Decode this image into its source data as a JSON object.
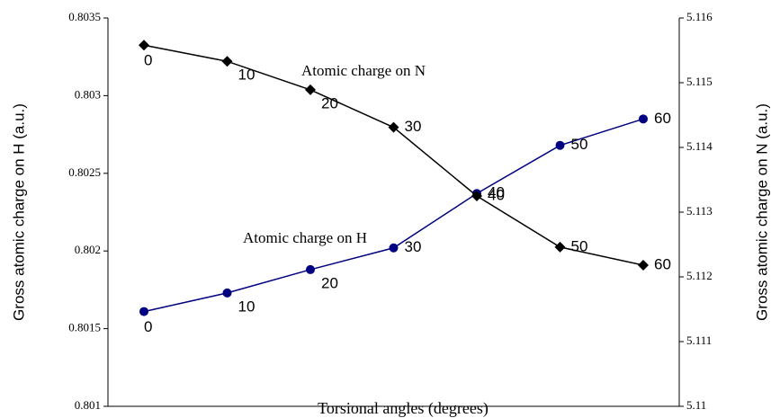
{
  "chart_data": {
    "type": "line",
    "xlabel": "Torsional angles (degrees)",
    "ylabel": "Gross atomic charge on H (a.u.)",
    "y2label": "Gross atomic charge on N (a.u.)",
    "categories": [
      "0",
      "10",
      "20",
      "30",
      "40",
      "50",
      "60"
    ],
    "series": [
      {
        "name": "Atomic charge on H",
        "color": "#000080",
        "marker": "circle",
        "values": [
          0.80161,
          0.80173,
          0.80188,
          0.80202,
          0.80237,
          0.80268,
          0.80285
        ]
      },
      {
        "name": "Atomic charge on N",
        "color": "#000000",
        "marker": "diamond",
        "axis": "y2",
        "values": [
          5.11558,
          5.11533,
          5.11489,
          5.11431,
          5.11325,
          5.11246,
          5.11218
        ]
      }
    ],
    "ylim": [
      0.801,
      0.8035
    ],
    "yticks": [
      0.801,
      0.8015,
      0.802,
      0.8025,
      0.803,
      0.8035
    ],
    "y2lim": [
      5.11,
      5.116
    ],
    "y2ticks": [
      {
        "value": 5.11,
        "label": "5.11"
      },
      5.111,
      5.112,
      5.113,
      5.114,
      5.115,
      5.116
    ]
  }
}
